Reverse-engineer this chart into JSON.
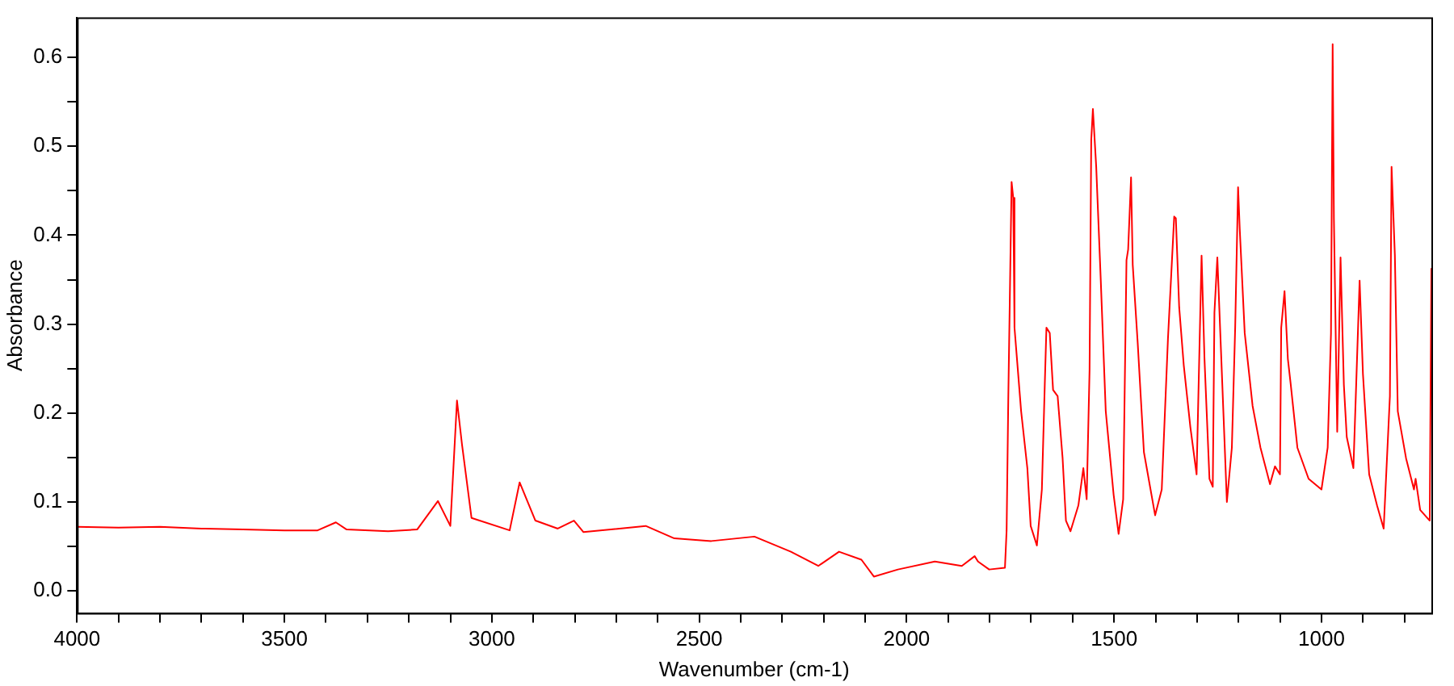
{
  "chart_data": {
    "type": "line",
    "xlabel": "Wavenumber (cm-1)",
    "ylabel": "Absorbance",
    "xlim": [
      4000,
      735
    ],
    "ylim": [
      -0.025,
      0.645
    ],
    "xticks": [
      4000,
      {
        "value": 3900,
        "label": null
      },
      {
        "value": 3800,
        "label": null
      },
      {
        "value": 3700,
        "label": null
      },
      {
        "value": 3600,
        "label": null
      },
      3500,
      {
        "value": 3400,
        "label": null
      },
      {
        "value": 3300,
        "label": null
      },
      {
        "value": 3200,
        "label": null
      },
      {
        "value": 3100,
        "label": null
      },
      3000,
      {
        "value": 2900,
        "label": null
      },
      {
        "value": 2800,
        "label": null
      },
      {
        "value": 2700,
        "label": null
      },
      {
        "value": 2600,
        "label": null
      },
      2500,
      {
        "value": 2400,
        "label": null
      },
      {
        "value": 2300,
        "label": null
      },
      {
        "value": 2200,
        "label": null
      },
      {
        "value": 2100,
        "label": null
      },
      2000,
      {
        "value": 1900,
        "label": null
      },
      {
        "value": 1800,
        "label": null
      },
      {
        "value": 1700,
        "label": null
      },
      {
        "value": 1600,
        "label": null
      },
      1500,
      {
        "value": 1400,
        "label": null
      },
      {
        "value": 1300,
        "label": null
      },
      {
        "value": 1200,
        "label": null
      },
      {
        "value": 1100,
        "label": null
      },
      1000,
      {
        "value": 900,
        "label": null
      },
      {
        "value": 800,
        "label": null
      }
    ],
    "yticks": [
      {
        "value": 0,
        "label": "0.0"
      },
      {
        "value": 0.05,
        "label": null
      },
      0.1,
      {
        "value": 0.15,
        "label": null
      },
      0.2,
      {
        "value": 0.25,
        "label": null
      },
      0.3,
      {
        "value": 0.35,
        "label": null
      },
      0.4,
      {
        "value": 0.45,
        "label": null
      },
      0.5,
      {
        "value": 0.55,
        "label": null
      },
      0.6
    ],
    "grid": false,
    "legend": false,
    "marker": "none",
    "line_style": "solid",
    "series": [
      {
        "color": "#ff0000",
        "x": [
          4000,
          3900,
          3800,
          3700,
          3600,
          3500,
          3420,
          3376,
          3350,
          3250,
          3180,
          3130,
          3100,
          3084,
          3072,
          3049,
          2957,
          2933,
          2895,
          2841,
          2802,
          2779,
          2629,
          2560,
          2471,
          2367,
          2279,
          2213,
          2163,
          2109,
          2079,
          2021,
          1932,
          1867,
          1836,
          1828,
          1801,
          1763,
          1759,
          1755,
          1747,
          1743,
          1740,
          1724,
          1709,
          1701,
          1686,
          1674,
          1667,
          1663,
          1655,
          1647,
          1636,
          1624,
          1616,
          1605,
          1586,
          1574,
          1566,
          1559,
          1555,
          1551,
          1543,
          1532,
          1520,
          1501,
          1489,
          1478,
          1470,
          1466,
          1459,
          1455,
          1443,
          1428,
          1401,
          1385,
          1370,
          1355,
          1351,
          1343,
          1332,
          1316,
          1301,
          1289,
          1282,
          1270,
          1262,
          1258,
          1251,
          1239,
          1228,
          1216,
          1208,
          1201,
          1197,
          1185,
          1166,
          1147,
          1124,
          1112,
          1100,
          1097,
          1089,
          1081,
          1074,
          1058,
          1031,
          1000,
          985,
          977,
          973,
          970,
          962,
          954,
          946,
          939,
          923,
          916,
          908,
          900,
          885,
          866,
          850,
          835,
          831,
          823,
          816,
          796,
          777,
          773,
          762,
          739,
          735
        ],
        "values": [
          0.072,
          0.071,
          0.072,
          0.07,
          0.069,
          0.068,
          0.068,
          0.077,
          0.069,
          0.067,
          0.069,
          0.101,
          0.073,
          0.214,
          0.165,
          0.082,
          0.068,
          0.122,
          0.079,
          0.07,
          0.079,
          0.066,
          0.073,
          0.059,
          0.056,
          0.061,
          0.044,
          0.028,
          0.044,
          0.035,
          0.016,
          0.024,
          0.033,
          0.028,
          0.039,
          0.033,
          0.024,
          0.026,
          0.068,
          0.214,
          0.46,
          0.442,
          0.296,
          0.202,
          0.138,
          0.073,
          0.051,
          0.114,
          0.232,
          0.296,
          0.29,
          0.226,
          0.219,
          0.149,
          0.079,
          0.067,
          0.096,
          0.138,
          0.103,
          0.249,
          0.507,
          0.542,
          0.477,
          0.349,
          0.202,
          0.108,
          0.064,
          0.103,
          0.372,
          0.384,
          0.465,
          0.367,
          0.279,
          0.156,
          0.085,
          0.114,
          0.284,
          0.421,
          0.419,
          0.319,
          0.254,
          0.184,
          0.131,
          0.377,
          0.261,
          0.126,
          0.117,
          0.313,
          0.375,
          0.232,
          0.1,
          0.161,
          0.296,
          0.454,
          0.407,
          0.29,
          0.208,
          0.161,
          0.12,
          0.14,
          0.131,
          0.296,
          0.337,
          0.261,
          0.232,
          0.161,
          0.126,
          0.114,
          0.161,
          0.29,
          0.615,
          0.419,
          0.179,
          0.375,
          0.232,
          0.173,
          0.138,
          0.236,
          0.349,
          0.244,
          0.131,
          0.096,
          0.07,
          0.219,
          0.477,
          0.377,
          0.202,
          0.149,
          0.114,
          0.126,
          0.091,
          0.079,
          0.363
        ]
      }
    ]
  }
}
